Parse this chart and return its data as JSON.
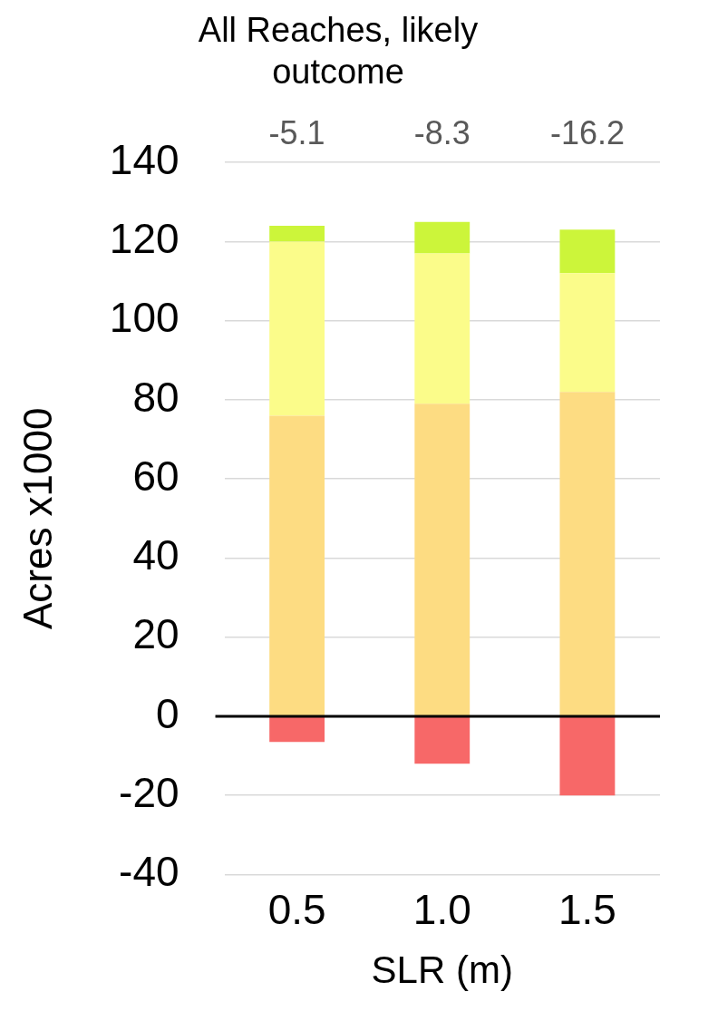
{
  "chart_data": {
    "type": "bar",
    "title": "All Reaches, likely outcome",
    "xlabel": "SLR (m)",
    "ylabel": "Acres x1000",
    "categories": [
      "0.5",
      "1.0",
      "1.5"
    ],
    "stacked": true,
    "series": [
      {
        "color": "#fddc82",
        "values": [
          76,
          79,
          82
        ]
      },
      {
        "color": "#fbfc8a",
        "values": [
          44,
          38,
          30
        ]
      },
      {
        "color": "#ccf53a",
        "values": [
          4,
          8,
          11
        ]
      },
      {
        "color": "#f76868",
        "values": [
          -6.5,
          -12,
          -20
        ]
      }
    ],
    "ylim": [
      -40,
      140
    ],
    "yticks": [
      -40,
      -20,
      0,
      20,
      40,
      60,
      80,
      100,
      120,
      140
    ],
    "grid": "y",
    "legend": false,
    "ref_lines": [
      {
        "axis": "y",
        "value": 0,
        "color": "#000000"
      }
    ],
    "annotations": [
      "-5.1",
      "-8.3",
      "-16.2"
    ]
  }
}
